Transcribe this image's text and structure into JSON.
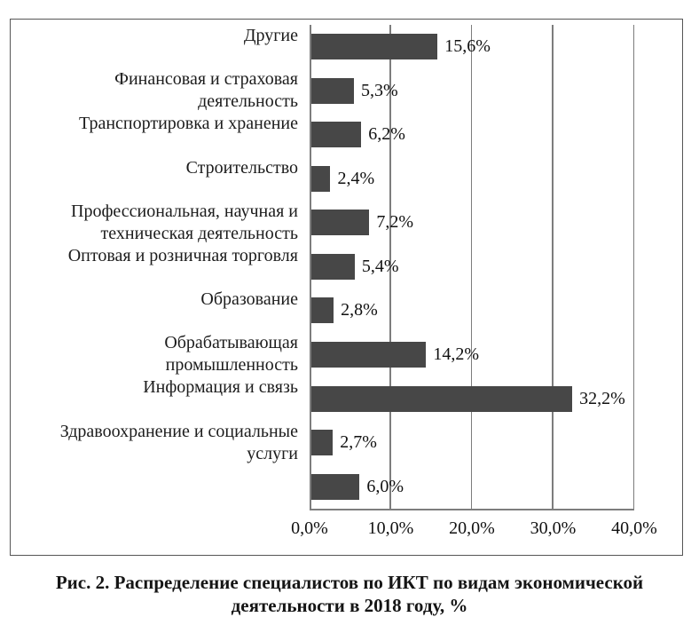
{
  "chart_data": {
    "type": "bar",
    "orientation": "horizontal",
    "categories": [
      "Другие",
      "Финансовая и страховая\nдеятельность",
      "Транспортировка и хранение",
      "Строительство",
      "Профессиональная, научная и\nтехническая деятельность",
      "Оптовая и розничная торговля",
      "Образование",
      "Обрабатывающая\nпромышленность",
      "Информация и связь",
      "Здравоохранение и социальные\nуслуги",
      ""
    ],
    "values": [
      15.6,
      5.3,
      6.2,
      2.4,
      7.2,
      5.4,
      2.8,
      14.2,
      32.2,
      2.7,
      6.0
    ],
    "value_labels": [
      "15,6%",
      "5,3%",
      "6,2%",
      "2,4%",
      "7,2%",
      "5,4%",
      "2,8%",
      "14,2%",
      "32,2%",
      "2,7%",
      "6,0%"
    ],
    "xlim": [
      0,
      40
    ],
    "x_ticks": [
      {
        "value": 0,
        "label": "0,0%"
      },
      {
        "value": 10,
        "label": "10,0%"
      },
      {
        "value": 20,
        "label": "20,0%"
      },
      {
        "value": 30,
        "label": "30,0%"
      },
      {
        "value": 40,
        "label": "40,0%"
      }
    ],
    "grid": true,
    "legend": "none",
    "bar_color": "#474747",
    "grid_color": "#7d7d7d",
    "frame_color": "#565656"
  },
  "caption": {
    "text": "Рис. 2. Распределение специалистов по ИКТ по видам экономической\nдеятельности в 2018 году, %"
  }
}
